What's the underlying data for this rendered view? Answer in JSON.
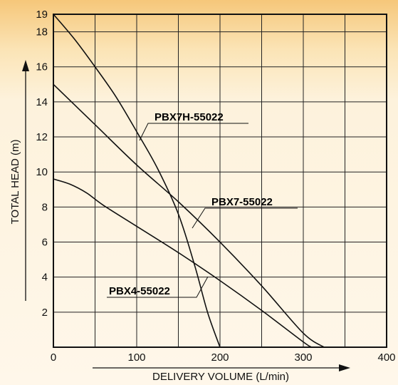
{
  "chart_data": {
    "type": "line",
    "title": "",
    "xlabel": "DELIVERY VOLUME (L/min)",
    "ylabel": "TOTAL HEAD (m)",
    "xlim": [
      0,
      400
    ],
    "ylim": [
      0,
      19
    ],
    "x_ticks": [
      "0",
      "100",
      "200",
      "300",
      "400"
    ],
    "y_ticks": [
      "2",
      "4",
      "6",
      "8",
      "10",
      "12",
      "14",
      "16",
      "18",
      "19"
    ],
    "grid": true,
    "series": [
      {
        "name": "PBX7H-55022",
        "x": [
          0,
          25,
          50,
          75,
          100,
          125,
          150,
          170,
          185,
          200
        ],
        "y": [
          19,
          17.6,
          16.0,
          14.3,
          12.3,
          10.2,
          7.6,
          4.6,
          2.0,
          0
        ]
      },
      {
        "name": "PBX7-55022",
        "x": [
          0,
          50,
          100,
          150,
          200,
          250,
          300,
          325
        ],
        "y": [
          15,
          12.7,
          10.4,
          8.3,
          6.0,
          3.5,
          0.8,
          0
        ]
      },
      {
        "name": "PBX4-55022",
        "x": [
          0,
          20,
          40,
          60,
          100,
          150,
          200,
          250,
          300,
          310
        ],
        "y": [
          9.6,
          9.3,
          8.8,
          8.1,
          6.9,
          5.4,
          3.8,
          2.1,
          0.3,
          0
        ]
      }
    ]
  }
}
